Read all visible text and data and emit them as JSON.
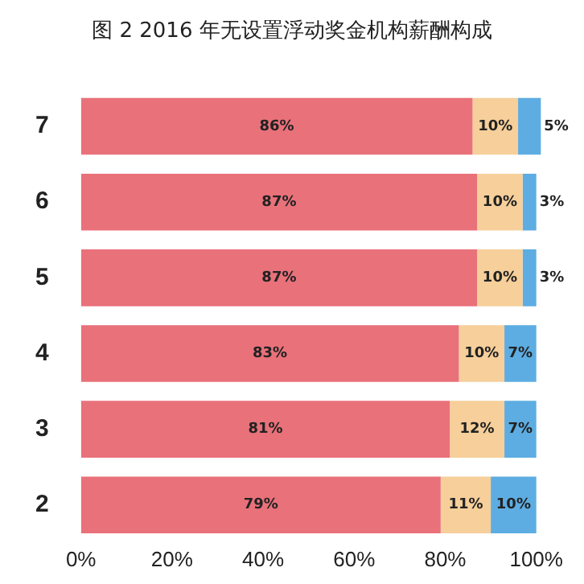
{
  "chart_data": {
    "type": "bar",
    "title": "图 2 2016 年无设置浮动奖金机构薪酬构成",
    "orientation": "horizontal",
    "stacked": true,
    "categories": [
      "7",
      "6",
      "5",
      "4",
      "3",
      "2"
    ],
    "series": [
      {
        "color": "#e9717a",
        "values": [
          86,
          87,
          87,
          83,
          81,
          79
        ],
        "value_labels": [
          "86%",
          "87%",
          "87%",
          "83%",
          "81%",
          "79%"
        ]
      },
      {
        "color": "#f6cf9a",
        "values": [
          10,
          10,
          10,
          10,
          12,
          11
        ],
        "value_labels": [
          "10%",
          "10%",
          "10%",
          "10%",
          "12%",
          "11%"
        ]
      },
      {
        "color": "#5dade2",
        "values": [
          5,
          3,
          3,
          7,
          7,
          10
        ],
        "value_labels": [
          "5%",
          "3%",
          "3%",
          "7%",
          "7%",
          "10%"
        ]
      }
    ],
    "xlim": [
      0,
      102
    ],
    "xticks": [
      {
        "value": 0,
        "label": "0%"
      },
      {
        "value": 20,
        "label": "20%"
      },
      {
        "value": 40,
        "label": "40%"
      },
      {
        "value": 60,
        "label": "60%"
      },
      {
        "value": 80,
        "label": "80%"
      },
      {
        "value": 100,
        "label": "100%"
      }
    ],
    "grid": false,
    "legend": false
  }
}
